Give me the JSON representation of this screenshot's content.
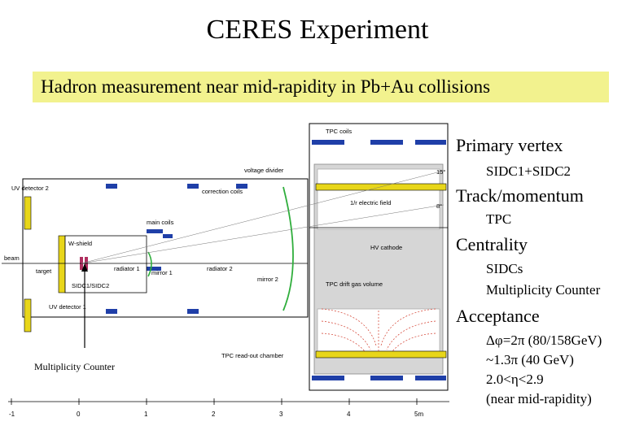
{
  "slide": {
    "title": "CERES Experiment",
    "subtitle": "Hadron measurement near mid-rapidity in Pb+Au collisions"
  },
  "diagram": {
    "labels": {
      "tpc_coils": "TPC coils",
      "voltage_divider": "voltage divider",
      "uv_detector_2": "UV detector 2",
      "correction_coils": "correction coils",
      "electric_field": "1/r electric field",
      "main_coils": "main coils",
      "w_shield": "W-shield",
      "beam": "beam",
      "target": "target",
      "radiator_1": "radiator 1",
      "radiator_2": "radiator 2",
      "mirror_1": "mirror 1",
      "mirror_2": "mirror 2",
      "hv_cathode": "HV cathode",
      "sidc": "SIDC1/SIDC2",
      "tpc_drift_gas": "TPC drift gas volume",
      "uv_detector_1": "UV detector 1",
      "tpc_readout": "TPC read-out chamber",
      "angle_15": "15°",
      "angle_8": "8°"
    },
    "axis_ticks": [
      "-1",
      "0",
      "1",
      "2",
      "3",
      "4",
      "5m"
    ],
    "multiplicity_counter_label": "Multiplicity Counter"
  },
  "measurements": [
    {
      "heading": "Primary vertex",
      "details": [
        "SIDC1+SIDC2"
      ]
    },
    {
      "heading": "Track/momentum",
      "details": [
        "TPC"
      ]
    },
    {
      "heading": "Centrality",
      "details": [
        "SIDCs",
        "Multiplicity Counter"
      ]
    },
    {
      "heading": "Acceptance",
      "details": [
        "Δφ=2π (80/158GeV)",
        "~1.3π (40 GeV)",
        "2.0<η<2.9",
        "(near mid-rapidity)"
      ]
    }
  ],
  "colors": {
    "highlight": "#f2f28e",
    "detector_yellow": "#e8d61a",
    "coil_blue": "#1f3fa8",
    "mirror_green": "#2fae3c",
    "field_red": "#d23a2a",
    "tpc_gray": "#c8c8c8"
  }
}
